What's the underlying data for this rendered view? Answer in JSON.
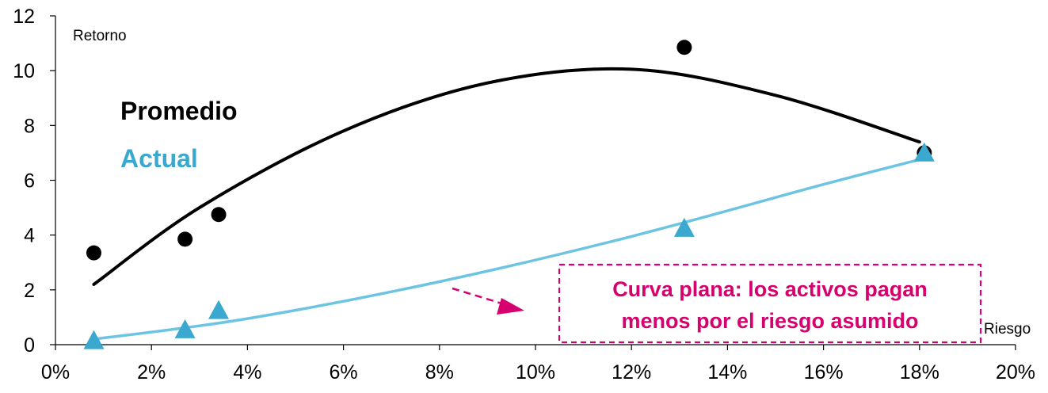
{
  "chart_data": {
    "type": "scatter",
    "xlabel": "Riesgo",
    "ylabel": "Retorno",
    "xlim": [
      0,
      0.2
    ],
    "ylim": [
      0,
      12
    ],
    "x_ticks": [
      "0%",
      "2%",
      "4%",
      "6%",
      "8%",
      "10%",
      "12%",
      "14%",
      "16%",
      "18%",
      "20%"
    ],
    "y_ticks": [
      "0",
      "2",
      "4",
      "6",
      "8",
      "10",
      "12"
    ],
    "grid": false,
    "legend": [
      {
        "label": "Promedio",
        "color": "#000000"
      },
      {
        "label": "Actual",
        "color": "#3aa8cf"
      }
    ],
    "series": [
      {
        "name": "Promedio",
        "marker": "circle",
        "color": "#000000",
        "points": [
          [
            0.008,
            3.35
          ],
          [
            0.027,
            3.85
          ],
          [
            0.034,
            4.75
          ],
          [
            0.131,
            10.85
          ],
          [
            0.181,
            7.0
          ]
        ],
        "trend": {
          "type": "polynomial",
          "x": [
            0.008,
            0.03,
            0.06,
            0.09,
            0.12,
            0.15,
            0.18
          ],
          "y": [
            2.2,
            5.0,
            7.8,
            9.55,
            10.05,
            9.1,
            7.4
          ]
        }
      },
      {
        "name": "Actual",
        "marker": "triangle",
        "color": "#3aa8cf",
        "trend_color": "#6cc4e2",
        "points": [
          [
            0.008,
            0.1
          ],
          [
            0.027,
            0.5
          ],
          [
            0.034,
            1.2
          ],
          [
            0.131,
            4.2
          ],
          [
            0.181,
            6.95
          ]
        ],
        "trend": {
          "type": "polynomial",
          "x": [
            0.008,
            0.04,
            0.08,
            0.12,
            0.16,
            0.181
          ],
          "y": [
            0.2,
            0.95,
            2.3,
            3.95,
            5.85,
            6.8
          ]
        }
      }
    ],
    "annotation": {
      "lines": [
        "Curva plana: los activos pagan",
        "menos por el riesgo asumido"
      ],
      "color": "#d6006e"
    }
  }
}
